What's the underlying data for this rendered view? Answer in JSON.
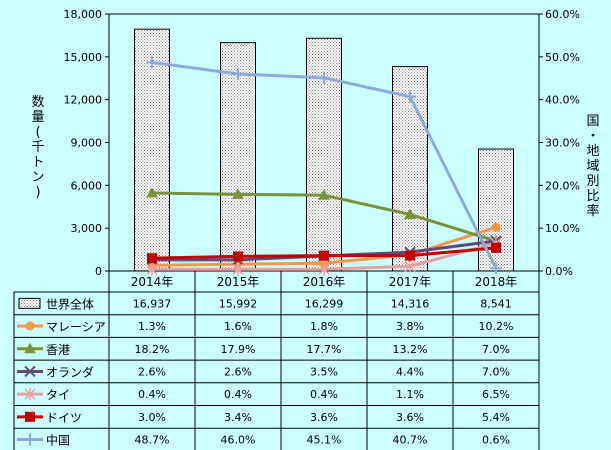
{
  "chart_data": {
    "type": "bar",
    "categories": [
      "2014年",
      "2015年",
      "2016年",
      "2017年",
      "2018年"
    ],
    "ylabel": "数量(千トン)",
    "y2label": "国・地域別比率",
    "ylim": [
      0,
      18000
    ],
    "y2lim": [
      0,
      60
    ],
    "y_ticks": [
      "0",
      "3,000",
      "6,000",
      "9,000",
      "12,000",
      "15,000",
      "18,000"
    ],
    "y2_ticks": [
      "0.0%",
      "10.0%",
      "20.0%",
      "30.0%",
      "40.0%",
      "50.0%",
      "60.0%"
    ],
    "grid": false,
    "legend": "data table below chart",
    "bar_series": {
      "name": "世界全体",
      "values": [
        16937,
        15992,
        16299,
        14316,
        8541
      ],
      "labels": [
        "16,937",
        "15,992",
        "16,299",
        "14,316",
        "8,541"
      ],
      "color": "#ffffff"
    },
    "series": [
      {
        "name": "マレーシア",
        "values": [
          1.3,
          1.6,
          1.8,
          3.8,
          10.2
        ],
        "labels": [
          "1.3%",
          "1.6%",
          "1.8%",
          "3.8%",
          "10.2%"
        ],
        "color": "#f79646",
        "marker": "circle"
      },
      {
        "name": "香港",
        "values": [
          18.2,
          17.9,
          17.7,
          13.2,
          7.0
        ],
        "labels": [
          "18.2%",
          "17.9%",
          "17.7%",
          "13.2%",
          "7.0%"
        ],
        "color": "#77933c",
        "marker": "triangle"
      },
      {
        "name": "オランダ",
        "values": [
          2.6,
          2.6,
          3.5,
          4.4,
          7.0
        ],
        "labels": [
          "2.6%",
          "2.6%",
          "3.5%",
          "4.4%",
          "7.0%"
        ],
        "color": "#604a7b",
        "marker": "x"
      },
      {
        "name": "タイ",
        "values": [
          0.4,
          0.4,
          0.4,
          1.1,
          6.5
        ],
        "labels": [
          "0.4%",
          "0.4%",
          "0.4%",
          "1.1%",
          "6.5%"
        ],
        "color": "#e6a0a0",
        "marker": "star"
      },
      {
        "name": "ドイツ",
        "values": [
          3.0,
          3.4,
          3.6,
          3.6,
          5.4
        ],
        "labels": [
          "3.0%",
          "3.4%",
          "3.6%",
          "3.6%",
          "5.4%"
        ],
        "color": "#c00000",
        "marker": "square"
      },
      {
        "name": "中国",
        "values": [
          48.7,
          46.0,
          45.1,
          40.7,
          0.6
        ],
        "labels": [
          "48.7%",
          "46.0%",
          "45.1%",
          "40.7%",
          "0.6%"
        ],
        "color": "#8ea9db",
        "marker": "plus"
      }
    ]
  }
}
